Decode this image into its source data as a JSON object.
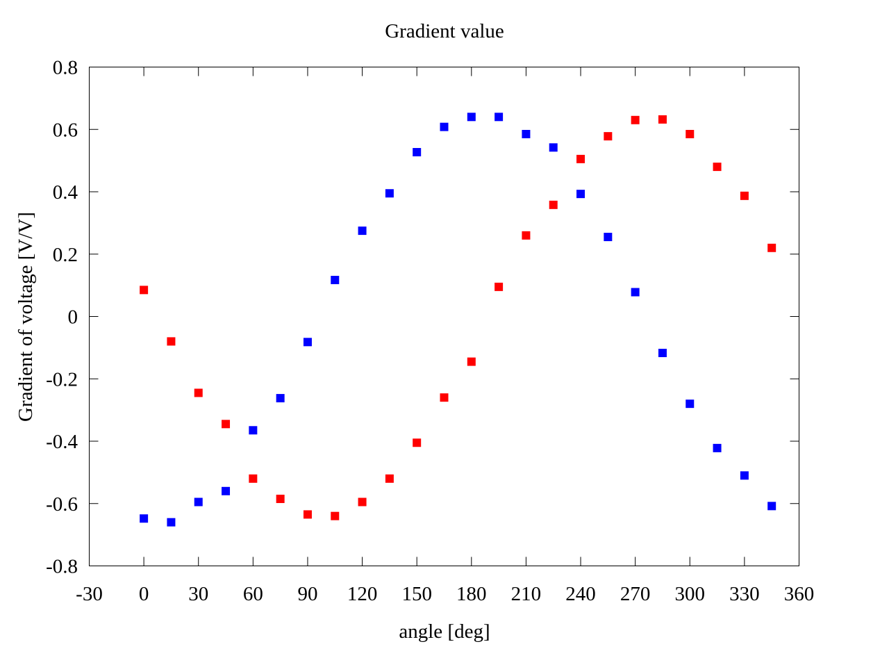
{
  "chart_data": {
    "type": "scatter",
    "title": "Gradient value",
    "xlabel": "angle [deg]",
    "ylabel": "Gradient of voltage [V/V]",
    "xlim": [
      -30,
      360
    ],
    "ylim": [
      -0.8,
      0.8
    ],
    "xticks": [
      -30,
      0,
      30,
      60,
      90,
      120,
      150,
      180,
      210,
      240,
      270,
      300,
      330,
      360
    ],
    "xtick_labels": [
      "-30",
      "0",
      "30",
      "60",
      "90",
      "120",
      "150",
      "180",
      "210",
      "240",
      "270",
      "300",
      "330",
      "360"
    ],
    "yticks": [
      -0.8,
      -0.6,
      -0.4,
      -0.2,
      0,
      0.2,
      0.4,
      0.6,
      0.8
    ],
    "ytick_labels": [
      "-0.8",
      "-0.6",
      "-0.4",
      "-0.2",
      "0",
      "0.2",
      "0.4",
      "0.6",
      "0.8"
    ],
    "grid": false,
    "legend": "none",
    "marker": "square",
    "x": [
      0,
      15,
      30,
      45,
      60,
      75,
      90,
      105,
      120,
      135,
      150,
      165,
      180,
      195,
      210,
      225,
      240,
      255,
      270,
      285,
      300,
      315,
      330,
      345
    ],
    "series": [
      {
        "color": "#ff0000",
        "values": [
          0.085,
          -0.08,
          -0.245,
          -0.345,
          -0.52,
          -0.585,
          -0.635,
          -0.64,
          -0.595,
          -0.52,
          -0.405,
          -0.26,
          -0.145,
          0.095,
          0.26,
          0.358,
          0.505,
          0.578,
          0.63,
          0.632,
          0.585,
          0.48,
          0.387,
          0.22
        ]
      },
      {
        "color": "#0000ff",
        "values": [
          -0.648,
          -0.66,
          -0.595,
          -0.56,
          -0.365,
          -0.262,
          -0.082,
          0.117,
          0.275,
          0.395,
          0.527,
          0.608,
          0.64,
          0.64,
          0.585,
          0.542,
          0.393,
          0.255,
          0.078,
          -0.117,
          -0.28,
          -0.422,
          -0.51,
          -0.608
        ]
      }
    ]
  }
}
